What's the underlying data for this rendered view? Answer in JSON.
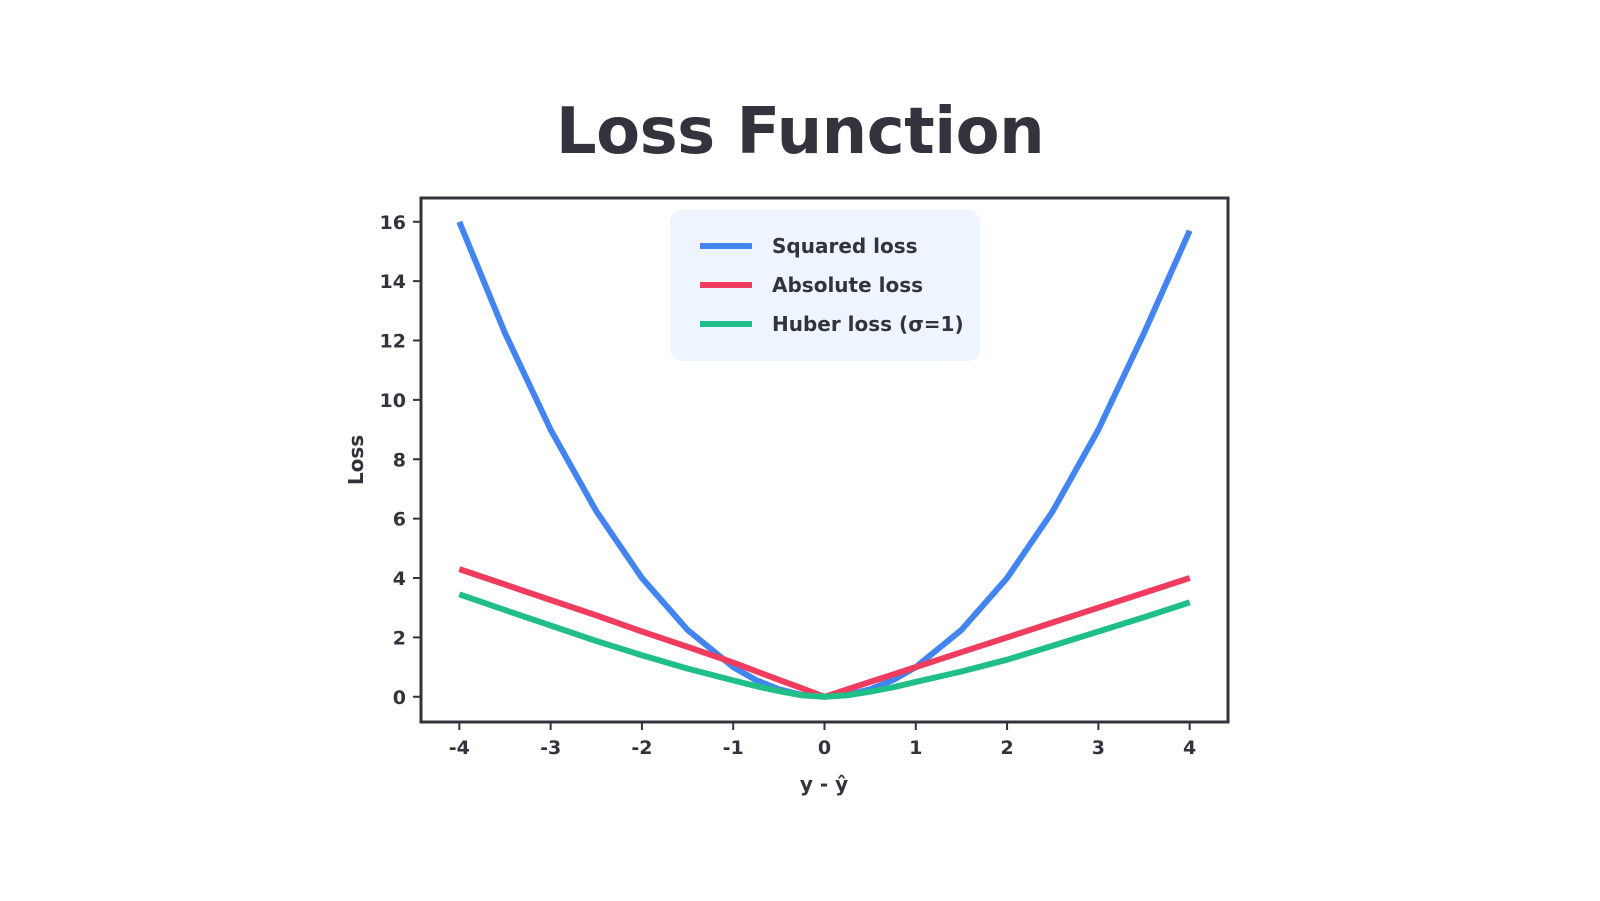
{
  "chart_data": {
    "type": "line",
    "title": "Loss Function",
    "xlabel": "y - ŷ",
    "ylabel": "Loss",
    "xlim": [
      -4.42,
      4.42
    ],
    "ylim": [
      -0.85,
      16.8
    ],
    "x_ticks": [
      -4,
      -3,
      -2,
      -1,
      0,
      1,
      2,
      3,
      4
    ],
    "x_tick_labels": [
      "-4",
      "-3",
      "-2",
      "-1",
      "0",
      "1",
      "2",
      "3",
      "4"
    ],
    "y_ticks": [
      0,
      2,
      4,
      6,
      8,
      10,
      12,
      14,
      16
    ],
    "y_tick_labels": [
      "0",
      "2",
      "4",
      "6",
      "8",
      "10",
      "12",
      "14",
      "16"
    ],
    "grid": false,
    "legend_position": "top-center",
    "x": [
      -4,
      -3.5,
      -3,
      -2.5,
      -2,
      -1.5,
      -1,
      -0.75,
      -0.5,
      -0.25,
      0,
      0.25,
      0.5,
      0.75,
      1,
      1.5,
      2,
      2.5,
      3,
      3.5,
      4
    ],
    "series": [
      {
        "name": "Squared loss",
        "color": "#4285f0",
        "values": [
          16,
          12.25,
          9,
          6.25,
          4,
          2.25,
          1,
          0.5625,
          0.25,
          0.0625,
          0,
          0.0625,
          0.25,
          0.5625,
          1,
          2.25,
          4,
          6.25,
          9,
          12.25,
          15.7
        ]
      },
      {
        "name": "Absolute loss",
        "color": "#f03c5f",
        "values": [
          4.3,
          3.78,
          3.26,
          2.74,
          2.2,
          1.68,
          1.15,
          0.86,
          0.57,
          0.29,
          0,
          0.25,
          0.5,
          0.75,
          1.0,
          1.5,
          2.0,
          2.5,
          3.0,
          3.5,
          4.0
        ]
      },
      {
        "name": "Huber loss (σ=1)",
        "color": "#1fbf87",
        "values": [
          3.45,
          2.92,
          2.4,
          1.88,
          1.4,
          0.95,
          0.55,
          0.36,
          0.19,
          0.05,
          0,
          0.05,
          0.17,
          0.32,
          0.5,
          0.85,
          1.25,
          1.72,
          2.2,
          2.68,
          3.18
        ]
      }
    ]
  },
  "style": {
    "text_color": "#33333d",
    "frame_color": "#33333d",
    "legend_background": "#eef5ff"
  }
}
